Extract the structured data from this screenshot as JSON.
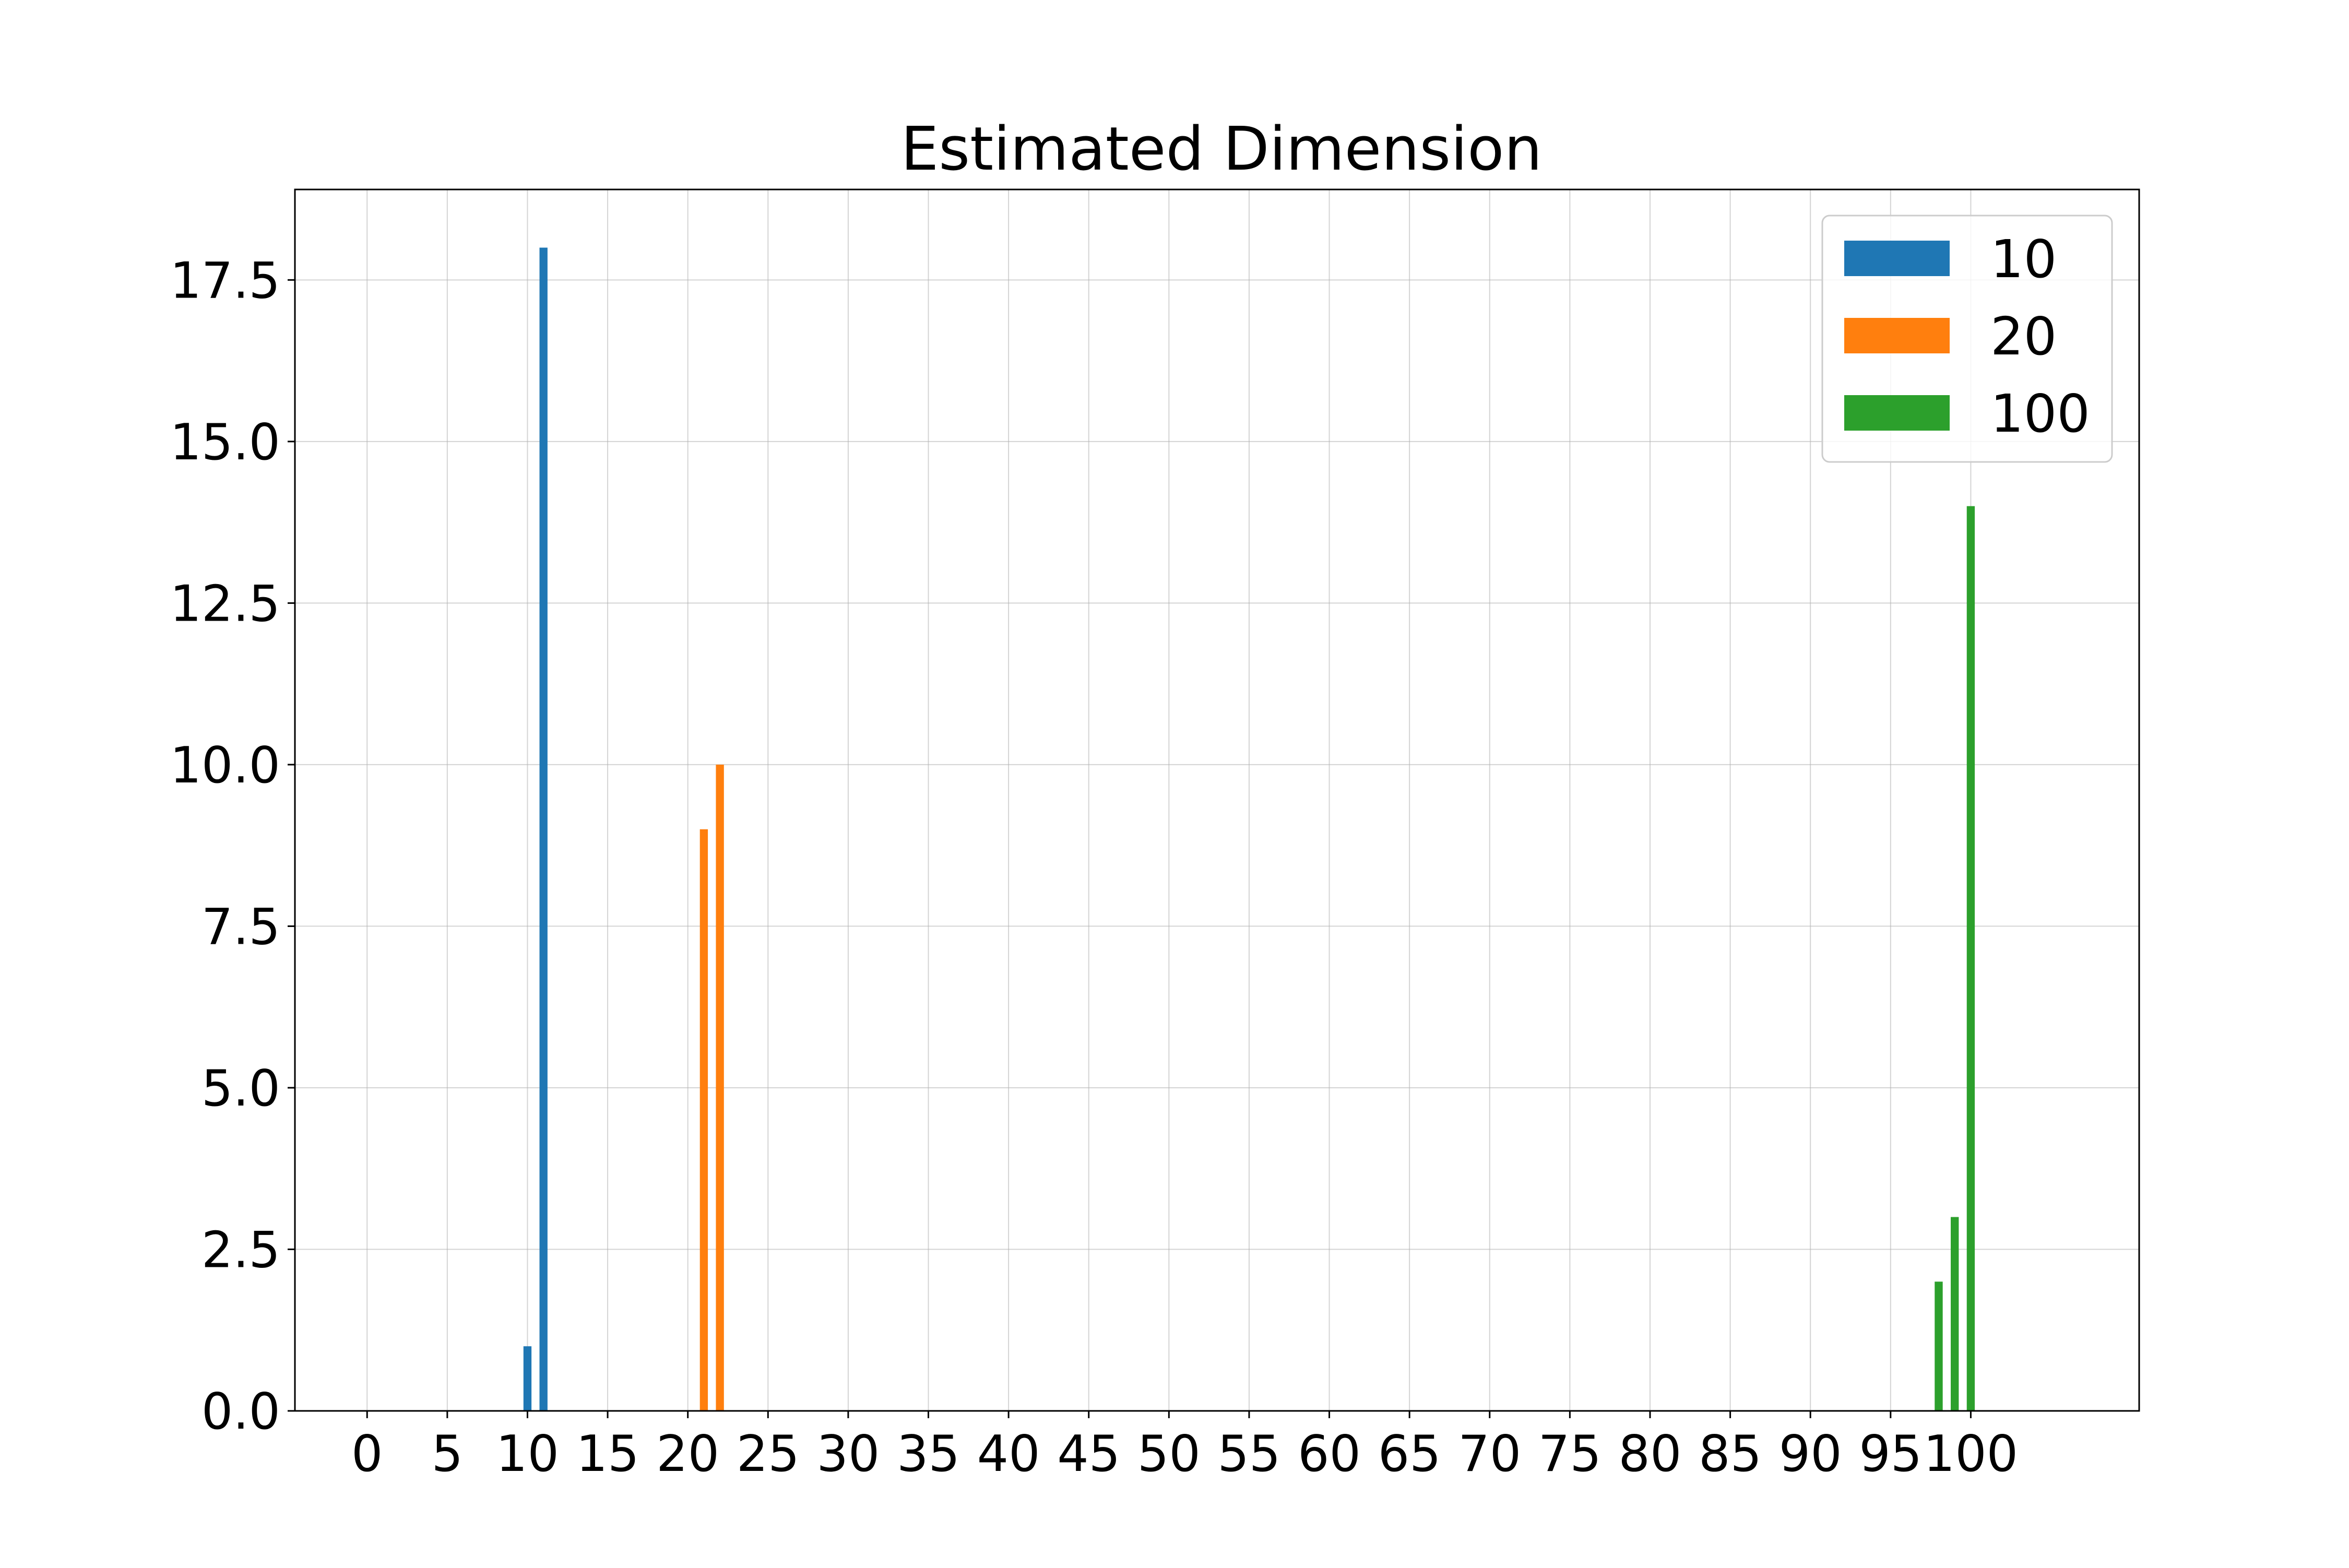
{
  "chart_data": {
    "type": "bar",
    "title": "Estimated Dimension",
    "xlabel": "",
    "ylabel": "",
    "xlim": [
      -4.5,
      110.5
    ],
    "ylim": [
      0,
      18.9
    ],
    "x_ticks": [
      0,
      5,
      10,
      15,
      20,
      25,
      30,
      35,
      40,
      45,
      50,
      55,
      60,
      65,
      70,
      75,
      80,
      85,
      90,
      95,
      100
    ],
    "y_ticks": [
      0.0,
      2.5,
      5.0,
      7.5,
      10.0,
      12.5,
      15.0,
      17.5
    ],
    "y_tick_labels": [
      "0.0",
      "2.5",
      "5.0",
      "7.5",
      "10.0",
      "12.5",
      "15.0",
      "17.5"
    ],
    "grid": true,
    "legend_position": "top-right",
    "series": [
      {
        "name": "10",
        "color": "#1f77b4",
        "points": [
          {
            "x": 10,
            "y": 1
          },
          {
            "x": 11,
            "y": 18
          }
        ]
      },
      {
        "name": "20",
        "color": "#ff7f0e",
        "points": [
          {
            "x": 21,
            "y": 9
          },
          {
            "x": 22,
            "y": 10
          }
        ]
      },
      {
        "name": "100",
        "color": "#2ca02c",
        "points": [
          {
            "x": 98,
            "y": 2
          },
          {
            "x": 99,
            "y": 3
          },
          {
            "x": 100,
            "y": 14
          }
        ]
      }
    ]
  }
}
